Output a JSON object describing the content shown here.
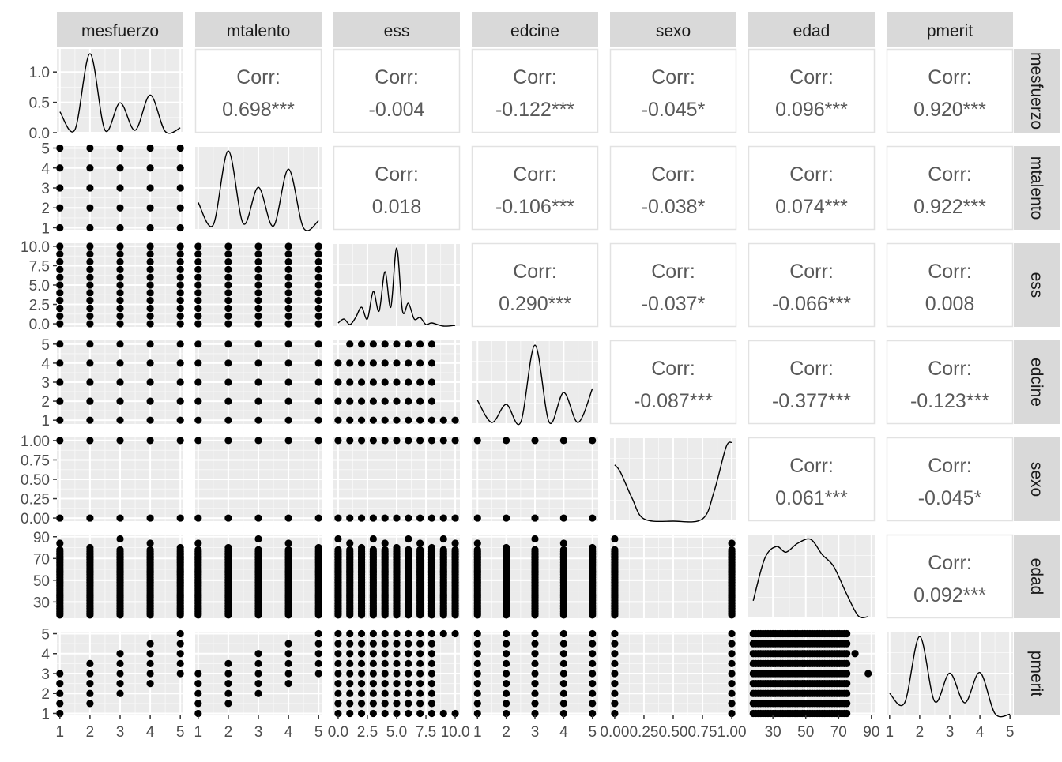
{
  "chart_data": {
    "type": "scatter",
    "variables": [
      "mesfuerzo",
      "mtalento",
      "ess",
      "edcine",
      "sexo",
      "edad",
      "pmerit"
    ],
    "corr_label": "Corr:",
    "correlations": [
      {
        "row": "mesfuerzo",
        "col": "mtalento",
        "text": "0.698***"
      },
      {
        "row": "mesfuerzo",
        "col": "ess",
        "text": "-0.004"
      },
      {
        "row": "mesfuerzo",
        "col": "edcine",
        "text": "-0.122***"
      },
      {
        "row": "mesfuerzo",
        "col": "sexo",
        "text": "-0.045*"
      },
      {
        "row": "mesfuerzo",
        "col": "edad",
        "text": "0.096***"
      },
      {
        "row": "mesfuerzo",
        "col": "pmerit",
        "text": "0.920***"
      },
      {
        "row": "mtalento",
        "col": "ess",
        "text": "0.018"
      },
      {
        "row": "mtalento",
        "col": "edcine",
        "text": "-0.106***"
      },
      {
        "row": "mtalento",
        "col": "sexo",
        "text": "-0.038*"
      },
      {
        "row": "mtalento",
        "col": "edad",
        "text": "0.074***"
      },
      {
        "row": "mtalento",
        "col": "pmerit",
        "text": "0.922***"
      },
      {
        "row": "ess",
        "col": "edcine",
        "text": "0.290***"
      },
      {
        "row": "ess",
        "col": "sexo",
        "text": "-0.037*"
      },
      {
        "row": "ess",
        "col": "edad",
        "text": "-0.066***"
      },
      {
        "row": "ess",
        "col": "pmerit",
        "text": "0.008"
      },
      {
        "row": "edcine",
        "col": "sexo",
        "text": "-0.087***"
      },
      {
        "row": "edcine",
        "col": "edad",
        "text": "-0.377***"
      },
      {
        "row": "edcine",
        "col": "pmerit",
        "text": "-0.123***"
      },
      {
        "row": "sexo",
        "col": "edad",
        "text": "0.061***"
      },
      {
        "row": "sexo",
        "col": "pmerit",
        "text": "-0.045*"
      },
      {
        "row": "edad",
        "col": "pmerit",
        "text": "0.092***"
      }
    ],
    "axes": {
      "mesfuerzo": {
        "range": [
          0.9,
          5.1
        ],
        "ticks": [
          1,
          2,
          3,
          4,
          5
        ],
        "tick_labels": [
          "1",
          "2",
          "3",
          "4",
          "5"
        ]
      },
      "mtalento": {
        "range": [
          0.9,
          5.1
        ],
        "ticks": [
          1,
          2,
          3,
          4,
          5
        ],
        "tick_labels": [
          "1",
          "2",
          "3",
          "4",
          "5"
        ]
      },
      "ess": {
        "range": [
          -0.4,
          10.4
        ],
        "ticks": [
          0,
          2.5,
          5,
          7.5,
          10
        ],
        "tick_labels": [
          "0.0",
          "2.5",
          "5.0",
          "7.5",
          "10.0"
        ]
      },
      "edcine": {
        "range": [
          0.8,
          5.2
        ],
        "ticks": [
          1,
          2,
          3,
          4,
          5
        ],
        "tick_labels": [
          "1",
          "2",
          "3",
          "4",
          "5"
        ]
      },
      "sexo": {
        "range": [
          -0.04,
          1.04
        ],
        "ticks": [
          0,
          0.25,
          0.5,
          0.75,
          1
        ],
        "tick_labels": [
          "0.00",
          "0.25",
          "0.50",
          "0.75",
          "1.00"
        ]
      },
      "edad": {
        "range": [
          15,
          92
        ],
        "ticks": [
          30,
          50,
          70,
          90
        ],
        "tick_labels": [
          "30",
          "50",
          "70",
          "90"
        ]
      },
      "pmerit": {
        "range": [
          0.9,
          5.1
        ],
        "ticks": [
          1,
          2,
          3,
          4,
          5
        ],
        "tick_labels": [
          "1",
          "2",
          "3",
          "4",
          "5"
        ]
      }
    },
    "density_y_axis": {
      "range": [
        0,
        1.38
      ],
      "ticks": [
        0,
        0.5,
        1
      ],
      "tick_labels": [
        "0.0",
        "0.5",
        "1.0"
      ]
    },
    "densities": {
      "mesfuerzo": [
        [
          1,
          0.35
        ],
        [
          1.5,
          0.05
        ],
        [
          2,
          1.32
        ],
        [
          2.5,
          0.04
        ],
        [
          3,
          0.5
        ],
        [
          3.5,
          0.04
        ],
        [
          4,
          0.63
        ],
        [
          4.5,
          0.02
        ],
        [
          5,
          0.08
        ]
      ],
      "mtalento": [
        [
          1,
          0.45
        ],
        [
          1.5,
          0.08
        ],
        [
          2,
          1.3
        ],
        [
          2.5,
          0.1
        ],
        [
          3,
          0.7
        ],
        [
          3.5,
          0.06
        ],
        [
          4,
          1
        ],
        [
          4.5,
          0.03
        ],
        [
          5,
          0.15
        ]
      ],
      "ess": [
        [
          0,
          0.05
        ],
        [
          0.5,
          0.1
        ],
        [
          1,
          0.03
        ],
        [
          1.5,
          0.12
        ],
        [
          2,
          0.25
        ],
        [
          2.5,
          0.1
        ],
        [
          3,
          0.45
        ],
        [
          3.5,
          0.2
        ],
        [
          4,
          0.7
        ],
        [
          4.5,
          0.25
        ],
        [
          5,
          1
        ],
        [
          5.5,
          0.2
        ],
        [
          6,
          0.3
        ],
        [
          6.5,
          0.1
        ],
        [
          7,
          0.12
        ],
        [
          7.5,
          0.03
        ],
        [
          8,
          0.05
        ],
        [
          9,
          0.01
        ],
        [
          10,
          0.02
        ]
      ],
      "edcine": [
        [
          1,
          0.3
        ],
        [
          1.5,
          0.02
        ],
        [
          2,
          0.25
        ],
        [
          2.5,
          0.02
        ],
        [
          3,
          1
        ],
        [
          3.5,
          0.02
        ],
        [
          4,
          0.4
        ],
        [
          4.5,
          0.02
        ],
        [
          5,
          0.45
        ]
      ],
      "sexo": [
        [
          0,
          0.75
        ],
        [
          0.05,
          0.65
        ],
        [
          0.15,
          0.3
        ],
        [
          0.25,
          0.03
        ],
        [
          0.5,
          0
        ],
        [
          0.75,
          0.03
        ],
        [
          0.85,
          0.4
        ],
        [
          0.95,
          0.98
        ],
        [
          1,
          1.05
        ]
      ],
      "edad": [
        [
          18,
          0.22
        ],
        [
          25,
          0.75
        ],
        [
          32,
          0.9
        ],
        [
          38,
          0.83
        ],
        [
          45,
          0.94
        ],
        [
          53,
          0.99
        ],
        [
          60,
          0.8
        ],
        [
          67,
          0.65
        ],
        [
          75,
          0.3
        ],
        [
          82,
          0.03
        ],
        [
          88,
          0.02
        ]
      ],
      "pmerit": [
        [
          1,
          0.35
        ],
        [
          1.5,
          0.2
        ],
        [
          2,
          1.25
        ],
        [
          2.5,
          0.22
        ],
        [
          3,
          0.67
        ],
        [
          3.5,
          0.2
        ],
        [
          4,
          0.68
        ],
        [
          4.5,
          0.03
        ],
        [
          5,
          0.02
        ]
      ]
    },
    "grid": true,
    "panel_bg": "#ebebeb",
    "strip_bg": "#d9d9d9",
    "point_color": "#000000",
    "corr_text_color": "#595959"
  }
}
